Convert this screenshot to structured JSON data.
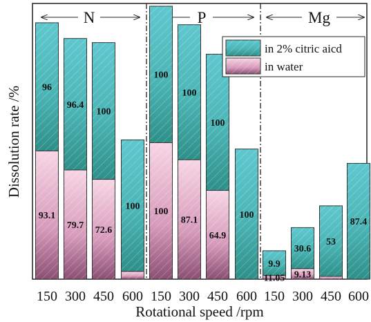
{
  "chart_data": {
    "type": "bar",
    "xlabel": "Rotational speed /rpm",
    "ylabel": "Dissolution rate /%",
    "categories": [
      "150",
      "300",
      "450",
      "600",
      "150",
      "300",
      "450",
      "600",
      "150",
      "300",
      "450",
      "600"
    ],
    "groups": [
      {
        "name": "N",
        "categories": [
          "150",
          "300",
          "450",
          "600"
        ]
      },
      {
        "name": "P",
        "categories": [
          "150",
          "300",
          "450",
          "600"
        ]
      },
      {
        "name": "Mg",
        "categories": [
          "150",
          "300",
          "450",
          "600"
        ]
      }
    ],
    "stacked": true,
    "series": [
      {
        "name": "in water",
        "values": [
          46.5,
          39.6,
          36.2,
          2.8,
          49.5,
          43.3,
          32.2,
          0,
          1.3,
          3.8,
          1.0,
          0
        ],
        "labels": [
          "93.1",
          "79.7",
          "72.6",
          "",
          "100",
          "87.1",
          "64.9",
          "",
          "11.05",
          "9.13",
          "",
          ""
        ]
      },
      {
        "name": "in 2% citric aicd",
        "values": [
          46.5,
          47.7,
          49.6,
          47.7,
          49.5,
          49.0,
          49.4,
          47.2,
          9.0,
          14.9,
          25.6,
          42.0
        ],
        "labels": [
          "96",
          "96.4",
          "100",
          "100",
          "100",
          "100",
          "100",
          "100",
          "9.9",
          "30.6",
          "53",
          "87.4"
        ]
      }
    ],
    "ylim": [
      0,
      100
    ],
    "legend_position": "top-right",
    "colors": {
      "citric": "#5bc4cc",
      "citric_dark": "#2e8f88",
      "water": "#f2c6d8",
      "water_dark": "#8a4f72",
      "border": "#333333"
    }
  }
}
